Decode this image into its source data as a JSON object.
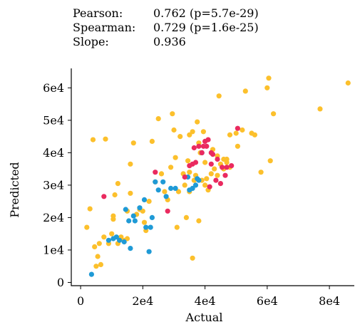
{
  "stats": [
    {
      "label": "Pearson:",
      "value": "0.762 (p=5.7e-29)"
    },
    {
      "label": "Spearman:",
      "value": "0.729 (p=1.6e-25)"
    },
    {
      "label": "Slope:",
      "value": "0.936"
    }
  ],
  "colors": {
    "yellow": "#fcc02c",
    "blue": "#1f9ad6",
    "red": "#ea2a5f",
    "axis": "#000000"
  },
  "chart_data": {
    "type": "scatter",
    "xlabel": "Actual",
    "ylabel": "Predicted",
    "xlim": [
      -3000,
      88000
    ],
    "ylim": [
      -1000,
      66000
    ],
    "xticks": [
      0,
      20000,
      40000,
      60000,
      80000
    ],
    "xtick_labels": [
      "0",
      "2e4",
      "4e4",
      "6e4",
      "8e4"
    ],
    "yticks": [
      0,
      10000,
      20000,
      30000,
      40000,
      50000,
      60000
    ],
    "ytick_labels": [
      "0",
      "1e4",
      "2e4",
      "3e4",
      "4e4",
      "5e4",
      "6e4"
    ],
    "grid": false,
    "series": [
      {
        "color": "yellow",
        "points": [
          [
            2000,
            17000
          ],
          [
            3000,
            22700
          ],
          [
            4000,
            44000
          ],
          [
            4500,
            11000
          ],
          [
            5000,
            5000
          ],
          [
            5500,
            8000
          ],
          [
            6000,
            12000
          ],
          [
            6500,
            5500
          ],
          [
            7500,
            14000
          ],
          [
            8000,
            44200
          ],
          [
            9000,
            12000
          ],
          [
            10000,
            15000
          ],
          [
            10500,
            20500
          ],
          [
            10500,
            19500
          ],
          [
            11000,
            27000
          ],
          [
            12000,
            30500
          ],
          [
            12000,
            12000
          ],
          [
            13000,
            14000
          ],
          [
            14000,
            13000
          ],
          [
            15000,
            13500
          ],
          [
            15000,
            22000
          ],
          [
            16000,
            27500
          ],
          [
            16000,
            36500
          ],
          [
            17000,
            43000
          ],
          [
            18000,
            21000
          ],
          [
            19000,
            22500
          ],
          [
            20000,
            22000
          ],
          [
            20500,
            18500
          ],
          [
            21000,
            16000
          ],
          [
            22000,
            25000
          ],
          [
            23000,
            43500
          ],
          [
            24000,
            31000
          ],
          [
            25000,
            50500
          ],
          [
            26000,
            33500
          ],
          [
            27000,
            28000
          ],
          [
            28000,
            25500
          ],
          [
            29000,
            35500
          ],
          [
            29500,
            52000
          ],
          [
            30000,
            47000
          ],
          [
            30500,
            38500
          ],
          [
            31000,
            17000
          ],
          [
            31500,
            28000
          ],
          [
            32000,
            45000
          ],
          [
            33000,
            33500
          ],
          [
            34000,
            20000
          ],
          [
            34500,
            37500
          ],
          [
            35000,
            34000
          ],
          [
            35000,
            45500
          ],
          [
            36000,
            46500
          ],
          [
            36500,
            31500
          ],
          [
            37000,
            33000
          ],
          [
            37500,
            49500
          ],
          [
            38000,
            43000
          ],
          [
            38500,
            40000
          ],
          [
            39000,
            31500
          ],
          [
            39500,
            46500
          ],
          [
            40000,
            37000
          ],
          [
            40500,
            32000
          ],
          [
            41000,
            28500
          ],
          [
            42000,
            33500
          ],
          [
            42500,
            41000
          ],
          [
            43000,
            35000
          ],
          [
            44000,
            33000
          ],
          [
            44500,
            57500
          ],
          [
            45000,
            36500
          ],
          [
            46000,
            38000
          ],
          [
            47000,
            37000
          ],
          [
            48000,
            35500
          ],
          [
            48000,
            45500
          ],
          [
            50000,
            46000
          ],
          [
            50500,
            42000
          ],
          [
            52000,
            47000
          ],
          [
            53000,
            59000
          ],
          [
            55000,
            46000
          ],
          [
            56000,
            45500
          ],
          [
            58000,
            34000
          ],
          [
            60000,
            60000
          ],
          [
            60500,
            63000
          ],
          [
            61000,
            37500
          ],
          [
            62000,
            52000
          ],
          [
            77000,
            53500
          ],
          [
            86000,
            61500
          ],
          [
            36000,
            7500
          ],
          [
            35000,
            28000
          ],
          [
            38000,
            19000
          ],
          [
            40000,
            30000
          ],
          [
            46000,
            35000
          ],
          [
            44000,
            39000
          ],
          [
            47000,
            38000
          ],
          [
            33500,
            30000
          ]
        ]
      },
      {
        "color": "blue",
        "points": [
          [
            3500,
            2500
          ],
          [
            9000,
            13000
          ],
          [
            10500,
            13500
          ],
          [
            11500,
            14000
          ],
          [
            12500,
            13000
          ],
          [
            14000,
            12500
          ],
          [
            14500,
            22500
          ],
          [
            15500,
            19000
          ],
          [
            16000,
            10500
          ],
          [
            17000,
            20500
          ],
          [
            17500,
            19000
          ],
          [
            19000,
            23000
          ],
          [
            20500,
            25500
          ],
          [
            21000,
            17000
          ],
          [
            22000,
            9500
          ],
          [
            22500,
            17000
          ],
          [
            23000,
            20000
          ],
          [
            24000,
            31000
          ],
          [
            25000,
            28500
          ],
          [
            26500,
            31000
          ],
          [
            27500,
            26500
          ],
          [
            29000,
            29000
          ],
          [
            30500,
            29000
          ],
          [
            34500,
            32500
          ],
          [
            35000,
            28500
          ],
          [
            36000,
            29000
          ],
          [
            37000,
            30000
          ],
          [
            37500,
            32000
          ],
          [
            38000,
            31500
          ],
          [
            39000,
            40000
          ]
        ]
      },
      {
        "color": "red",
        "points": [
          [
            7500,
            26500
          ],
          [
            24000,
            34000
          ],
          [
            28000,
            22000
          ],
          [
            33500,
            32500
          ],
          [
            35000,
            36000
          ],
          [
            36500,
            41500
          ],
          [
            37000,
            37000
          ],
          [
            38000,
            42000
          ],
          [
            39000,
            40000
          ],
          [
            40000,
            43500
          ],
          [
            40500,
            42000
          ],
          [
            41500,
            29500
          ],
          [
            42000,
            40000
          ],
          [
            42500,
            39500
          ],
          [
            43500,
            31500
          ],
          [
            44000,
            38000
          ],
          [
            45000,
            30500
          ],
          [
            45500,
            35500
          ],
          [
            46500,
            33000
          ],
          [
            47000,
            35500
          ],
          [
            48500,
            36000
          ],
          [
            50500,
            47500
          ],
          [
            39500,
            42000
          ],
          [
            41000,
            44000
          ],
          [
            36000,
            36500
          ],
          [
            42000,
            36500
          ]
        ]
      }
    ]
  }
}
